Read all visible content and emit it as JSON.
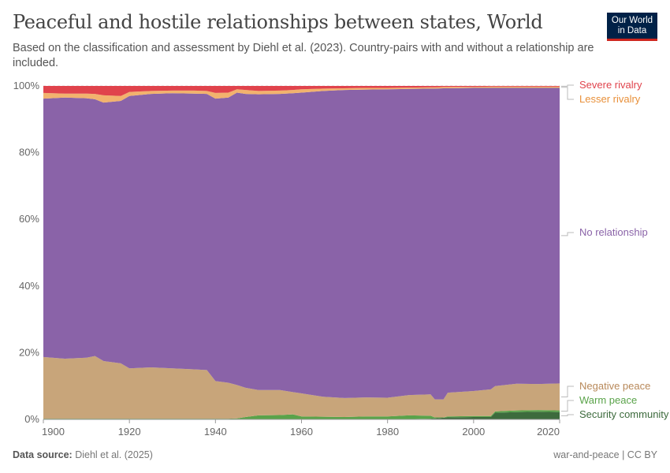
{
  "header": {
    "title": "Peaceful and hostile relationships between states, World",
    "subtitle": "Based on the classification and assessment by Diehl et al. (2023). Country-pairs with and without a relationship are included.",
    "logo": "Our World in Data"
  },
  "footer": {
    "source_label": "Data source:",
    "source": "Diehl et al. (2025)",
    "license": "war-and-peace | CC BY"
  },
  "chart_data": {
    "type": "area",
    "stacked": true,
    "normalized": true,
    "title": "Peaceful and hostile relationships between states, World",
    "xlim": [
      1900,
      2020
    ],
    "ylim": [
      0,
      100
    ],
    "x_ticks": [
      "1900",
      "1920",
      "1940",
      "1960",
      "1980",
      "2000",
      "2020"
    ],
    "y_ticks": [
      "0%",
      "20%",
      "40%",
      "60%",
      "80%",
      "100%"
    ],
    "grid": "horizontal dashed",
    "legend": "right (inline labels)",
    "x": [
      1900,
      1905,
      1910,
      1912,
      1914,
      1918,
      1920,
      1925,
      1930,
      1935,
      1938,
      1940,
      1943,
      1945,
      1947,
      1950,
      1955,
      1958,
      1960,
      1965,
      1970,
      1975,
      1980,
      1985,
      1990,
      1991,
      1993,
      1994,
      2000,
      2004,
      2005,
      2010,
      2015,
      2020
    ],
    "series": [
      {
        "name": "Security community",
        "color": "#3d6b3d",
        "values": [
          0.1,
          0.1,
          0.1,
          0.1,
          0.1,
          0.1,
          0.1,
          0.1,
          0.1,
          0.1,
          0.1,
          0.1,
          0.1,
          0.1,
          0.1,
          0.1,
          0.1,
          0.1,
          0.1,
          0.1,
          0.1,
          0.1,
          0.1,
          0.1,
          0.2,
          0.3,
          0.5,
          0.6,
          0.7,
          0.7,
          2.0,
          2.2,
          2.3,
          2.2
        ]
      },
      {
        "name": "Warm peace",
        "color": "#5aa34a",
        "values": [
          0.1,
          0.1,
          0.1,
          0.1,
          0.1,
          0.1,
          0.1,
          0.1,
          0.1,
          0.1,
          0.1,
          0.1,
          0.1,
          0.2,
          0.6,
          1.1,
          1.2,
          1.4,
          0.8,
          0.7,
          0.6,
          0.8,
          0.8,
          1.1,
          0.9,
          0.3,
          0.1,
          0.3,
          0.3,
          0.3,
          0.4,
          0.5,
          0.5,
          0.5
        ]
      },
      {
        "name": "Negative peace",
        "color": "#c8a57a",
        "values": [
          18.5,
          18.0,
          18.3,
          18.8,
          17.3,
          16.6,
          15.1,
          15.4,
          15.1,
          14.8,
          14.6,
          11.3,
          10.8,
          10.0,
          8.8,
          7.6,
          7.5,
          6.7,
          6.9,
          6.0,
          5.7,
          5.7,
          5.6,
          6.1,
          6.4,
          5.4,
          5.4,
          7.1,
          7.5,
          8.0,
          7.6,
          8.0,
          7.8,
          8.1
        ]
      },
      {
        "name": "No relationship",
        "color": "#8a63a8",
        "values": [
          77.5,
          78.3,
          77.8,
          77.0,
          77.5,
          78.7,
          81.7,
          82.0,
          82.5,
          82.7,
          82.8,
          84.7,
          85.5,
          87.7,
          88.1,
          88.7,
          88.8,
          89.6,
          90.2,
          91.7,
          92.4,
          92.3,
          92.5,
          91.8,
          91.7,
          93.2,
          93.3,
          91.3,
          90.9,
          90.4,
          89.4,
          88.7,
          88.8,
          88.6
        ]
      },
      {
        "name": "Lesser rivalry",
        "color": "#f2b26e",
        "values": [
          1.7,
          1.2,
          1.4,
          1.6,
          2.2,
          1.5,
          1.2,
          0.9,
          0.8,
          0.9,
          0.9,
          1.7,
          1.5,
          1.0,
          1.2,
          1.0,
          1.0,
          1.0,
          1.0,
          0.7,
          0.5,
          0.5,
          0.4,
          0.4,
          0.4,
          0.4,
          0.4,
          0.4,
          0.3,
          0.4,
          0.4,
          0.4,
          0.4,
          0.4
        ]
      },
      {
        "name": "Severe rivalry",
        "color": "#e0434c",
        "values": [
          2.1,
          2.3,
          2.3,
          2.4,
          2.8,
          3.0,
          1.8,
          1.5,
          1.4,
          1.4,
          1.5,
          2.1,
          2.0,
          1.0,
          1.2,
          1.5,
          1.4,
          1.2,
          1.0,
          0.8,
          0.7,
          0.6,
          0.6,
          0.5,
          0.4,
          0.4,
          0.3,
          0.3,
          0.3,
          0.2,
          0.2,
          0.2,
          0.2,
          0.2
        ]
      }
    ]
  }
}
